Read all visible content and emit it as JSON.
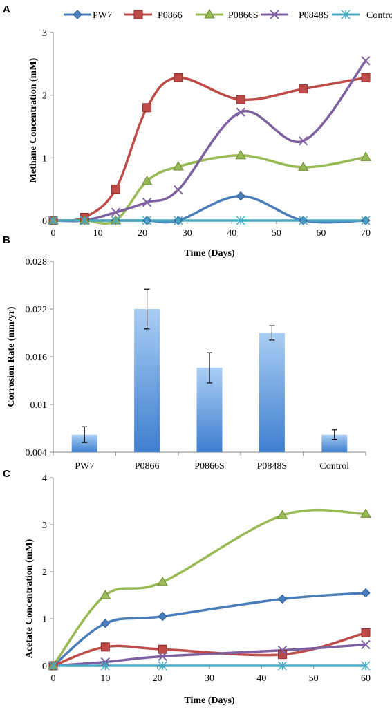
{
  "chart_data": [
    {
      "panel": "A",
      "type": "line",
      "xlabel": "Time (Days)",
      "ylabel": "Methane Concentration (mM)",
      "xlim": [
        0,
        70
      ],
      "ylim": [
        0,
        3
      ],
      "xticks": [
        0,
        10,
        20,
        30,
        40,
        50,
        60,
        70
      ],
      "yticks": [
        0,
        1,
        2,
        3
      ],
      "x": [
        0,
        7,
        14,
        21,
        28,
        42,
        56,
        70
      ],
      "legend_position": "top",
      "series": [
        {
          "name": "PW7",
          "color": "#4a7ebb",
          "marker": "diamond",
          "values": [
            0,
            0,
            0,
            0,
            0,
            0.39,
            0,
            0
          ]
        },
        {
          "name": "P0866",
          "color": "#be4b48",
          "marker": "square",
          "values": [
            0,
            0.05,
            0.5,
            1.8,
            2.28,
            1.93,
            2.1,
            2.28
          ]
        },
        {
          "name": "P0866S",
          "color": "#98b954",
          "marker": "triangle",
          "values": [
            0,
            0,
            0,
            0.63,
            0.86,
            1.04,
            0.85,
            1.01
          ]
        },
        {
          "name": "P0848S",
          "color": "#7d60a0",
          "marker": "x",
          "values": [
            0,
            0,
            0.13,
            0.29,
            0.49,
            1.73,
            1.27,
            2.55
          ]
        },
        {
          "name": "Control",
          "color": "#46aac5",
          "marker": "asterisk",
          "values": [
            0,
            0,
            0,
            0,
            0,
            0,
            0,
            0
          ]
        }
      ]
    },
    {
      "panel": "B",
      "type": "bar",
      "xlabel": "",
      "ylabel": "Corrosion Rate (mm/yr)",
      "ylim": [
        0.004,
        0.028
      ],
      "yticks": [
        "0.004",
        "0.01",
        "0.016",
        "0.022",
        "0.028"
      ],
      "categories": [
        "PW7",
        "P0866",
        "P0866S",
        "P0848S",
        "Control"
      ],
      "values": [
        0.0062,
        0.022,
        0.0146,
        0.019,
        0.0062
      ],
      "errors": [
        0.001,
        0.0025,
        0.0019,
        0.0009,
        0.0006
      ],
      "color": "#5b9bd5"
    },
    {
      "panel": "C",
      "type": "line",
      "xlabel": "Time (Days)",
      "ylabel": "Acetate Concentration (mM)",
      "xlim": [
        0,
        60
      ],
      "ylim": [
        0,
        4
      ],
      "xticks": [
        0,
        10,
        20,
        30,
        40,
        50,
        60
      ],
      "yticks": [
        0,
        1,
        2,
        3,
        4
      ],
      "x": [
        0,
        10,
        21,
        44,
        60
      ],
      "series": [
        {
          "name": "PW7",
          "color": "#4a7ebb",
          "marker": "diamond",
          "values": [
            0,
            0.9,
            1.05,
            1.42,
            1.55
          ]
        },
        {
          "name": "P0866",
          "color": "#be4b48",
          "marker": "square",
          "values": [
            0,
            0.4,
            0.35,
            0.24,
            0.7
          ]
        },
        {
          "name": "P0866S",
          "color": "#98b954",
          "marker": "triangle",
          "values": [
            0,
            1.5,
            1.78,
            3.2,
            3.23
          ]
        },
        {
          "name": "P0848S",
          "color": "#7d60a0",
          "marker": "x",
          "values": [
            0,
            0.08,
            0.2,
            0.33,
            0.45
          ]
        },
        {
          "name": "Control",
          "color": "#46aac5",
          "marker": "asterisk",
          "values": [
            0,
            0,
            0,
            0,
            0
          ]
        }
      ]
    }
  ]
}
